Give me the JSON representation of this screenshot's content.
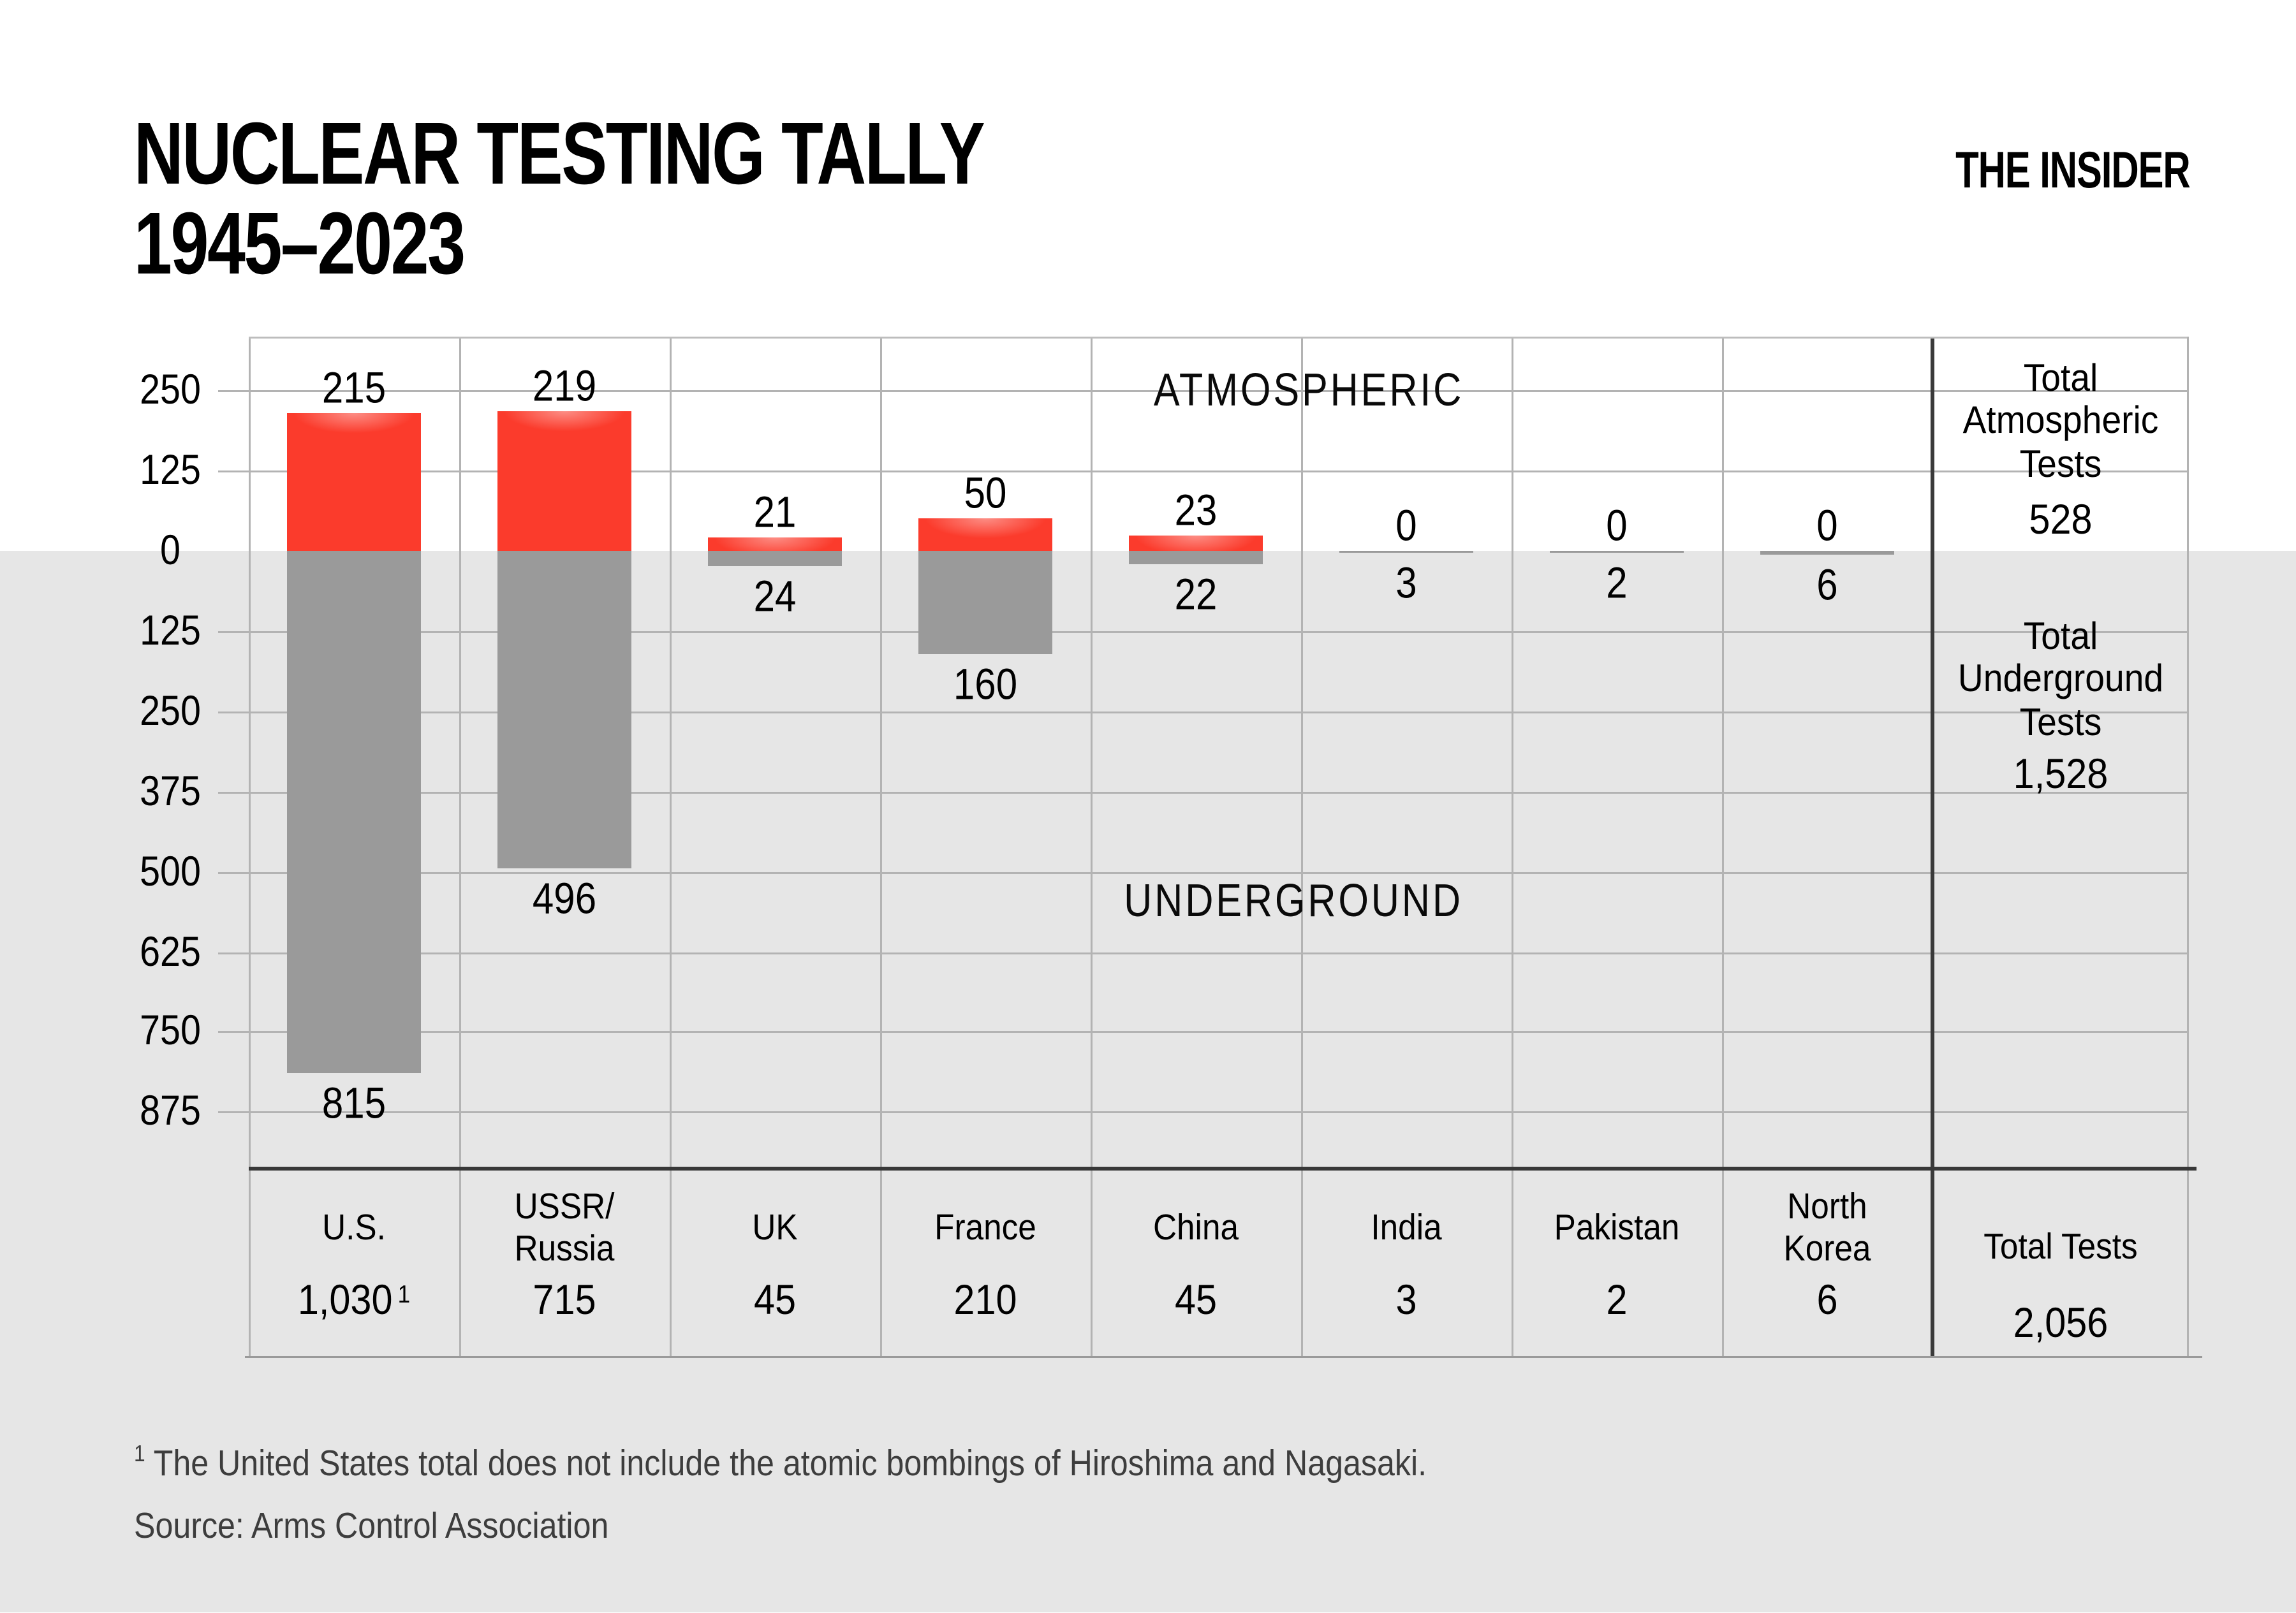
{
  "header": {
    "title_line1": "NUCLEAR TESTING TALLY",
    "title_line2": "1945–2023",
    "logo": "THE INSIDER"
  },
  "chart_data": {
    "type": "bar",
    "title": "NUCLEAR TESTING TALLY 1945–2023",
    "categories": [
      {
        "id": "us",
        "label_lines": [
          "U.S."
        ],
        "total": "1,030",
        "total_sup": "1"
      },
      {
        "id": "ussr-russia",
        "label_lines": [
          "USSR/",
          "Russia"
        ],
        "total": "715",
        "total_sup": ""
      },
      {
        "id": "uk",
        "label_lines": [
          "UK"
        ],
        "total": "45",
        "total_sup": ""
      },
      {
        "id": "france",
        "label_lines": [
          "France"
        ],
        "total": "210",
        "total_sup": ""
      },
      {
        "id": "china",
        "label_lines": [
          "China"
        ],
        "total": "45",
        "total_sup": ""
      },
      {
        "id": "india",
        "label_lines": [
          "India"
        ],
        "total": "3",
        "total_sup": ""
      },
      {
        "id": "pakistan",
        "label_lines": [
          "Pakistan"
        ],
        "total": "2",
        "total_sup": ""
      },
      {
        "id": "north-korea",
        "label_lines": [
          "North",
          "Korea"
        ],
        "total": "6",
        "total_sup": ""
      }
    ],
    "series": [
      {
        "name": "Atmospheric",
        "direction": "up",
        "color": "#fb3b2c",
        "values": [
          215,
          219,
          21,
          50,
          23,
          0,
          0,
          0
        ]
      },
      {
        "name": "Underground",
        "direction": "down",
        "color": "#9a9a9a",
        "values": [
          815,
          496,
          24,
          160,
          22,
          3,
          2,
          6
        ]
      }
    ],
    "zone_labels": {
      "upper": "ATMOSPHERIC",
      "lower": "UNDERGROUND"
    },
    "y_axis": {
      "tick_interval": 125,
      "tick_values": [
        250,
        125,
        0,
        -125,
        -250,
        -375,
        -500,
        -625,
        -750,
        -875
      ],
      "tick_labels": [
        "250",
        "125",
        "0",
        "125",
        "250",
        "375",
        "500",
        "625",
        "750",
        "875"
      ],
      "range_top": 335,
      "range_bottom": -963,
      "grid": true
    },
    "totals_column": {
      "atmospheric_label_lines": [
        "Total",
        "Atmospheric",
        "Tests"
      ],
      "atmospheric_value": "528",
      "underground_label_lines": [
        "Total",
        "Underground",
        "Tests"
      ],
      "underground_value": "1,528",
      "footer_label": "Total Tests",
      "footer_value": "2,056"
    }
  },
  "footnotes": {
    "note1_sup": "1",
    "note1": "The United States total does not include the atomic bombings of Hiroshima and Nagasaki.",
    "source": "Source: Arms Control Association"
  },
  "colors": {
    "atmospheric_red": "#fb3b2c",
    "underground_gray": "#9a9a9a",
    "lower_background": "#e6e6e6",
    "gridline": "#b3b3b3",
    "axis": "#383838"
  }
}
